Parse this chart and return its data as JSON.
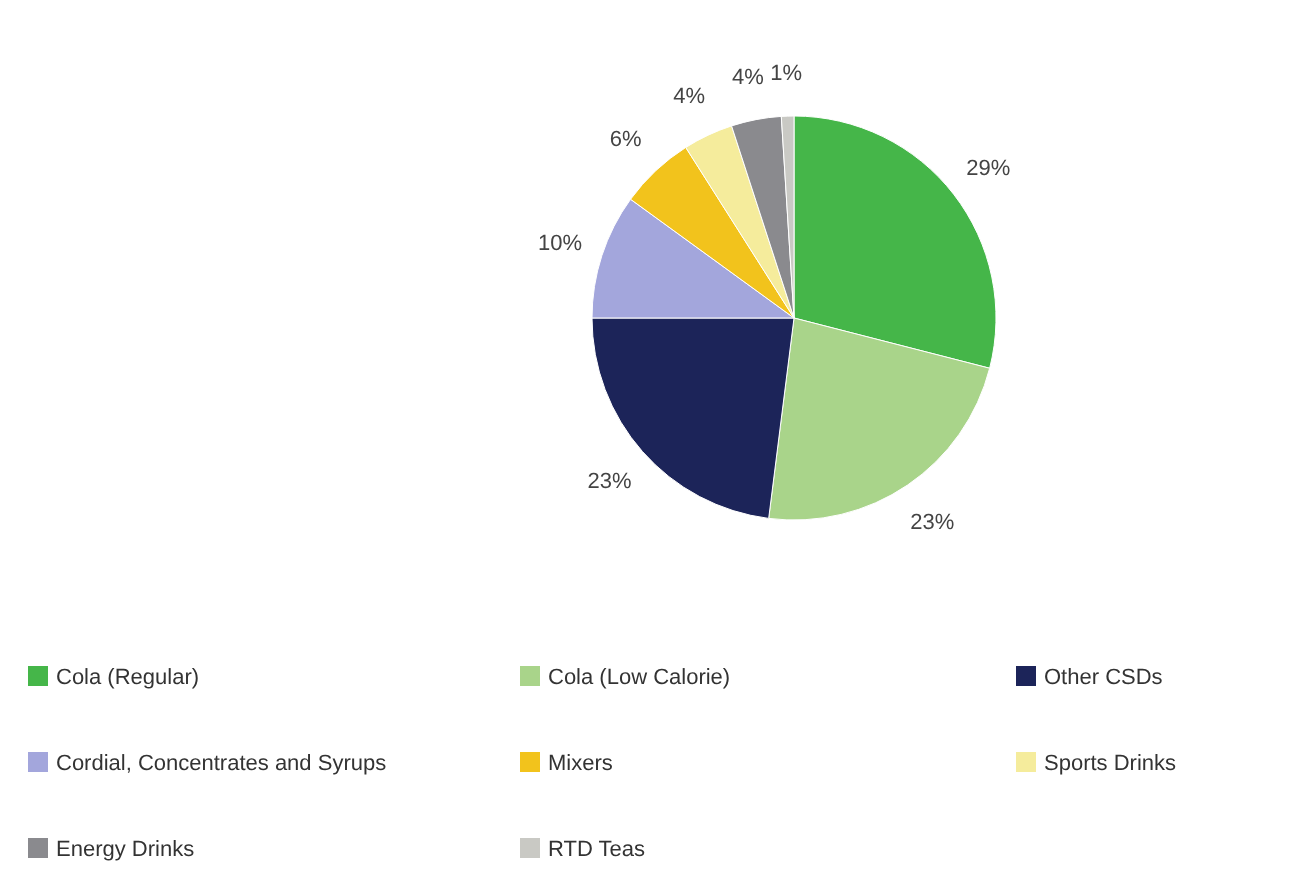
{
  "chart_data": {
    "type": "pie",
    "categories": [
      "Cola (Regular)",
      "Cola (Low Calorie)",
      "Other CSDs",
      "Cordial, Concentrates and Syrups",
      "Mixers",
      "Sports Drinks",
      "Energy Drinks",
      "RTD Teas"
    ],
    "values": [
      29,
      23,
      23,
      10,
      6,
      4,
      4,
      1
    ],
    "colors": [
      "#45b649",
      "#a9d48a",
      "#1c2459",
      "#a3a6dc",
      "#f2c31c",
      "#f5ec9c",
      "#8a8a8e",
      "#c9c9c4"
    ],
    "value_labels": [
      "29%",
      "23%",
      "23%",
      "10%",
      "6%",
      "4%",
      "4%",
      "1%"
    ],
    "legend": "bottom"
  }
}
